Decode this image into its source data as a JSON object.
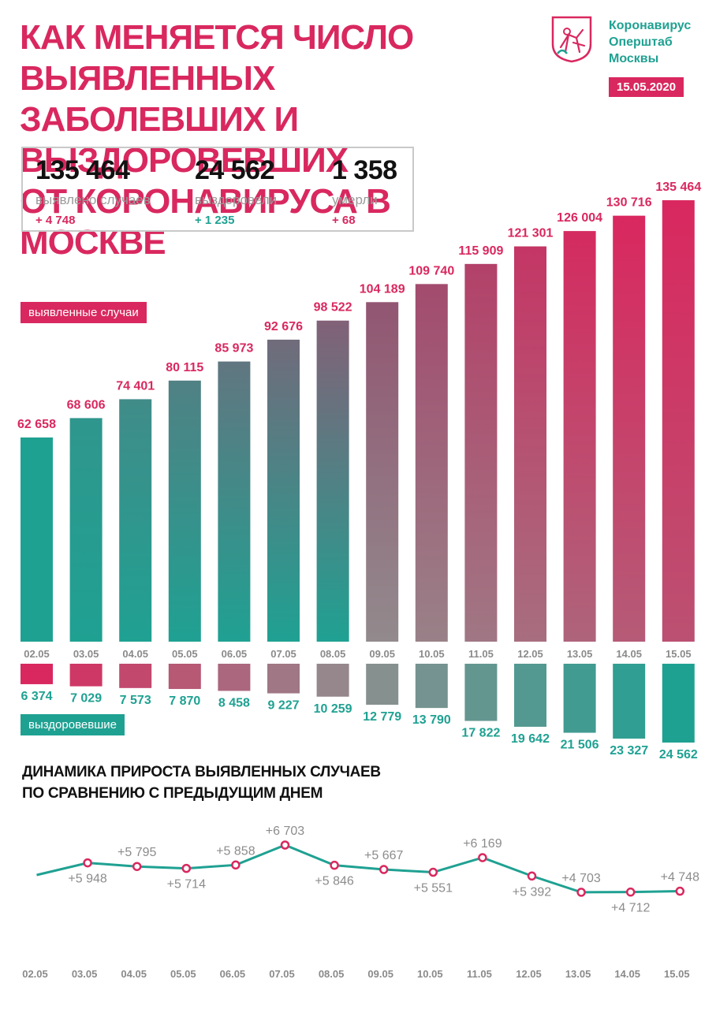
{
  "header": {
    "title_lines": [
      "КАК МЕНЯЕТСЯ ЧИСЛО ВЫЯВЛЕННЫХ",
      "ЗАБОЛЕВШИХ И ВЫЗДОРОВЕВШИХ",
      "ОТ КОРОНАВИРУСА В МОСКВЕ"
    ],
    "brand_lines": [
      "Коронавирус",
      "Оперштаб",
      "Москвы"
    ],
    "date": "15.05.2020"
  },
  "stats": [
    {
      "value": "135 464",
      "label": "выявлено случаев",
      "delta": "+ 4 748"
    },
    {
      "value": "24 562",
      "label": "выздоровели",
      "delta": "+ 1 235"
    },
    {
      "value": "1 358",
      "label": "умерли",
      "delta": "+ 68"
    }
  ],
  "legend": {
    "cases": "выявленные случаи",
    "recovered": "выздоровевшие"
  },
  "subtitle_lines": [
    "ДИНАМИКА ПРИРОСТА ВЫЯВЛЕННЫХ СЛУЧАЕВ",
    "ПО СРАВНЕНИЮ С ПРЕДЫДУЩИМ ДНЕМ"
  ],
  "colors": {
    "pink": "#d9285f",
    "teal": "#1fa192",
    "grey_mid": "#8f8f8f"
  },
  "chart_data": [
    {
      "type": "bar",
      "title": "выявленные случаи",
      "categories": [
        "02.05",
        "03.05",
        "04.05",
        "05.05",
        "06.05",
        "07.05",
        "08.05",
        "09.05",
        "10.05",
        "11.05",
        "12.05",
        "13.05",
        "14.05",
        "15.05"
      ],
      "values": [
        62658,
        68606,
        74401,
        80115,
        85973,
        92676,
        98522,
        104189,
        109740,
        115909,
        121301,
        126004,
        130716,
        135464
      ],
      "labels": [
        "62 658",
        "68 606",
        "74 401",
        "80 115",
        "85 973",
        "92 676",
        "98 522",
        "104 189",
        "109 740",
        "115 909",
        "121 301",
        "126 004",
        "130 716",
        "135 464"
      ],
      "ylim": [
        0,
        135464
      ]
    },
    {
      "type": "bar",
      "title": "выздоровевшие",
      "categories": [
        "02.05",
        "03.05",
        "04.05",
        "05.05",
        "06.05",
        "07.05",
        "08.05",
        "09.05",
        "10.05",
        "11.05",
        "12.05",
        "13.05",
        "14.05",
        "15.05"
      ],
      "values": [
        6374,
        7029,
        7573,
        7870,
        8458,
        9227,
        10259,
        12779,
        13790,
        17822,
        19642,
        21506,
        23327,
        24562
      ],
      "labels": [
        "6 374",
        "7 029",
        "7 573",
        "7 870",
        "8 458",
        "9 227",
        "10 259",
        "12 779",
        "13 790",
        "17 822",
        "19 642",
        "21 506",
        "23 327",
        "24 562"
      ],
      "ylim": [
        0,
        24562
      ]
    },
    {
      "type": "line",
      "title": "ДИНАМИКА ПРИРОСТА ВЫЯВЛЕННЫХ СЛУЧАЕВ ПО СРАВНЕНИЮ С ПРЕДЫДУЩИМ ДНЕМ",
      "categories": [
        "02.05",
        "03.05",
        "04.05",
        "05.05",
        "06.05",
        "07.05",
        "08.05",
        "09.05",
        "10.05",
        "11.05",
        "12.05",
        "13.05",
        "14.05",
        "15.05"
      ],
      "values": [
        null,
        5948,
        5795,
        5714,
        5858,
        6703,
        5846,
        5667,
        5551,
        6169,
        5392,
        4703,
        4712,
        4748
      ],
      "labels": [
        "",
        "+5 948",
        "+5 795",
        "+5 714",
        "+5 858",
        "+6 703",
        "+5 846",
        "+5 667",
        "+5 551",
        "+6 169",
        "+5 392",
        "+4 703",
        "+4 712",
        "+4 748"
      ],
      "label_pos": [
        "",
        "below",
        "above",
        "below",
        "above",
        "above",
        "below",
        "above",
        "below",
        "above",
        "below",
        "above",
        "below",
        "above"
      ],
      "ylim": [
        4400,
        7000
      ]
    }
  ]
}
